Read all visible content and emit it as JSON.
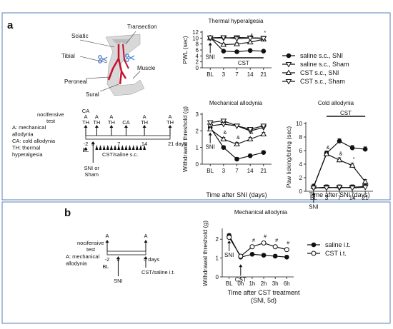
{
  "panel_labels": {
    "a": "a",
    "b": "b"
  },
  "anatomy": {
    "labels": {
      "sciatic": "Sciatic",
      "transection": "Transection",
      "tibial": "Tibial",
      "peroneal": "Peroneal",
      "sural": "Sural",
      "muscle": "Muscle"
    },
    "colors": {
      "nerve": "#c8102e",
      "scissors": "#4a7fd0",
      "tissue": "#d8d8d8"
    }
  },
  "timeline_a": {
    "row_label": [
      "nocifensive",
      "test"
    ],
    "legend": [
      "A: mechanical",
      "allodynia",
      "CA: cold allodynia",
      "TH: thermal",
      "hyperalgesia"
    ],
    "tests": [
      {
        "lines": [
          "CA",
          "A",
          "TH"
        ],
        "t": -2
      },
      {
        "lines": [
          "A",
          "TH"
        ],
        "t": 1
      },
      {
        "lines": [
          "A",
          "TH"
        ],
        "t": 5
      },
      {
        "lines": [
          "CA"
        ],
        "t": 9
      },
      {
        "lines": [
          "A",
          "TH"
        ],
        "t": 14
      },
      {
        "lines": [
          "A",
          "TH"
        ],
        "t": 21
      }
    ],
    "ticks": [
      "-2",
      "0",
      "7",
      "14",
      "21 days"
    ],
    "bl": "BL",
    "surgery": [
      "SNI or",
      "Sham"
    ],
    "treatment": "CST/saline s.c."
  },
  "timeline_b": {
    "row_label": [
      "nocifensive",
      "test"
    ],
    "legend": [
      "A: mechanical",
      "allodynia"
    ],
    "tests": [
      "A",
      "A"
    ],
    "ticks": [
      "-2",
      "0",
      "5 days"
    ],
    "bl": "BL",
    "surgery": "SNI",
    "treatment": "CST/saline i.t."
  },
  "legend_a": [
    "saline s.c., SNI",
    "saline s.c., Sham",
    "CST s.c., SNI",
    "CST s.c., Sham"
  ],
  "legend_b": [
    "saline i.t.",
    "CST i.t."
  ],
  "chart_data": [
    {
      "type": "line",
      "title": "Thermal hyperalgesia",
      "ylabel": "PWL (sec)",
      "categories": [
        "BL",
        "3",
        "7",
        "14",
        "21"
      ],
      "ylim": [
        0,
        12
      ],
      "yticks": [
        0,
        2,
        4,
        6,
        8,
        10,
        12
      ],
      "series": [
        {
          "name": "saline s.c., SNI",
          "values": [
            10.2,
            5.6,
            5.4,
            5.8,
            5.6
          ]
        },
        {
          "name": "saline s.c., Sham",
          "values": [
            10.0,
            10.0,
            10.2,
            10.1,
            10.0
          ]
        },
        {
          "name": "CST s.c., SNI",
          "values": [
            10.0,
            7.8,
            8.0,
            8.6,
            9.6
          ]
        },
        {
          "name": "CST s.c., Sham",
          "values": [
            10.1,
            10.2,
            9.8,
            10.0,
            9.9
          ]
        }
      ],
      "annotations": {
        "arrow": "SNI",
        "bar": "CST",
        "marks": [
          "*",
          "&",
          "&",
          "*"
        ]
      }
    },
    {
      "type": "line",
      "title": "Mechanical allodynia",
      "ylabel": "Withdrawal threshold (g)",
      "categories": [
        "BL",
        "3",
        "7",
        "14",
        "21"
      ],
      "ylim": [
        0,
        3
      ],
      "yticks": [
        0,
        1,
        2,
        3
      ],
      "series": [
        {
          "name": "saline s.c., SNI",
          "values": [
            2.2,
            1.0,
            0.3,
            0.5,
            0.7
          ]
        },
        {
          "name": "saline s.c., Sham",
          "values": [
            2.3,
            2.4,
            2.3,
            2.0,
            2.2
          ]
        },
        {
          "name": "CST s.c., SNI",
          "values": [
            2.1,
            1.5,
            1.2,
            1.5,
            1.8
          ]
        },
        {
          "name": "CST s.c., Sham",
          "values": [
            2.5,
            2.6,
            2.3,
            2.1,
            2.3
          ]
        }
      ],
      "annotations": {
        "arrow": "SNI",
        "marks": [
          "&",
          "&",
          "&"
        ]
      }
    },
    {
      "type": "line",
      "title": "Cold allodynia",
      "ylabel": "Paw licking/biting (sec)",
      "categories": [
        "BL",
        "3",
        "7",
        "14",
        "21"
      ],
      "ylim": [
        0,
        10
      ],
      "yticks": [
        0,
        2,
        4,
        6,
        8,
        10
      ],
      "series": [
        {
          "name": "saline s.c., SNI",
          "values": [
            0.6,
            5.6,
            7.4,
            6.4,
            6.2
          ]
        },
        {
          "name": "saline s.c., Sham",
          "values": [
            0.5,
            0.6,
            0.5,
            0.6,
            0.7
          ]
        },
        {
          "name": "CST s.c., SNI",
          "values": [
            0.7,
            5.5,
            4.6,
            3.8,
            1.4
          ]
        },
        {
          "name": "CST s.c., Sham",
          "values": [
            0.5,
            0.5,
            0.6,
            0.5,
            0.6
          ]
        }
      ],
      "annotations": {
        "arrow": "SNI",
        "bar": "CST",
        "marks": [
          "&",
          "&",
          "*"
        ]
      }
    },
    {
      "type": "line",
      "title": "Mechanical allodynia",
      "ylabel": "Withdrawal threshold (g)",
      "xlabel": [
        "Time after CST treatment",
        "(SNI, 5d)"
      ],
      "categories": [
        "BL",
        "0h",
        "1h",
        "2h",
        "3h",
        "6h"
      ],
      "ylim": [
        0,
        2.5
      ],
      "yticks": [
        0,
        1,
        2
      ],
      "series": [
        {
          "name": "saline i.t.",
          "values": [
            2.2,
            1.05,
            1.2,
            1.15,
            1.1,
            1.05
          ]
        },
        {
          "name": "CST i.t.",
          "values": [
            2.1,
            1.1,
            1.6,
            1.8,
            1.6,
            1.45
          ]
        }
      ],
      "annotations": {
        "arrow_sni": "SNI",
        "arrow_cst": "CST",
        "marks": [
          "#",
          "#",
          "#",
          "#"
        ]
      }
    }
  ],
  "xlabel_a": "Time after SNI (days)"
}
